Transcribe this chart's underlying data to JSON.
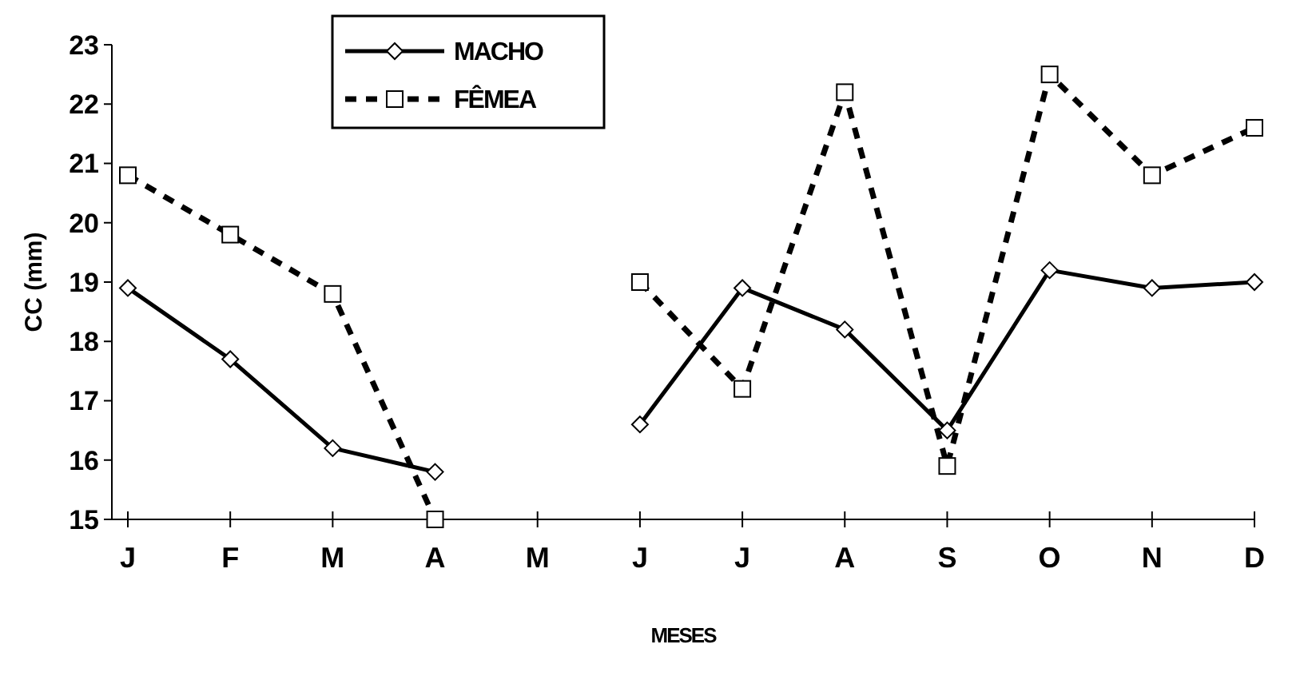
{
  "chart_data": {
    "type": "line",
    "xlabel": "MESES",
    "ylabel": "CC (mm)",
    "categories": [
      "J",
      "F",
      "M",
      "A",
      "M",
      "J",
      "J",
      "A",
      "S",
      "O",
      "N",
      "D"
    ],
    "ylim": [
      15,
      23
    ],
    "yticks": [
      15,
      16,
      17,
      18,
      19,
      20,
      21,
      22,
      23
    ],
    "grid": false,
    "legend": "top",
    "series": [
      {
        "name": "MACHO",
        "color": "#000000",
        "marker": "diamond",
        "line_style": "solid",
        "values": [
          18.9,
          17.7,
          16.2,
          15.8,
          null,
          16.6,
          18.9,
          18.2,
          16.5,
          19.2,
          18.9,
          19.0
        ]
      },
      {
        "name": "FÊMEA",
        "color": "#000000",
        "marker": "square",
        "line_style": "dashed",
        "values": [
          20.8,
          19.8,
          18.8,
          15,
          null,
          19.0,
          17.2,
          22.2,
          15.9,
          22.5,
          20.8,
          21.6
        ]
      }
    ]
  }
}
